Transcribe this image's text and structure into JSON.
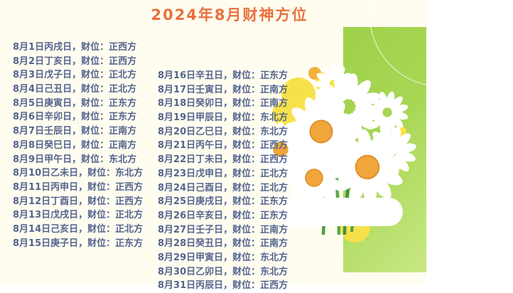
{
  "title": "2024年8月财神方位",
  "fortune": {
    "left": [
      "8月1日丙戌日，财位：正西方",
      "8月2日丁亥日，财位：正西方",
      "8月3日戊子日，财位：正北方",
      "8月4日己丑日，财位：正北方",
      "8月5日庚寅日，财位：正东方",
      "8月6日辛卯日，财位：正东方",
      "8月7日壬辰日，财位：正南方",
      "8月8日癸巳日，财位：正南方",
      "8月9日甲午日，财位：东北方",
      "8月10日乙未日，财位：东北方",
      "8月11日丙申日，财位：正西方",
      "8月12日丁酉日，财位：正西方",
      "8月13日戊戌日，财位：正北方",
      "8月14日己亥日，财位：正北方",
      "8月15日庚子日，财位：正东方"
    ],
    "right": [
      "8月16日辛丑日，财位：正东方",
      "8月17日壬寅日，财位：正南方",
      "8月18日癸卯日，财位：正南方",
      "8月19日甲辰日，财位：东北方",
      "8月20日乙巳日，财位：东北方",
      "8月21日丙午日，财位：正西方",
      "8月22日丁未日，财位：正西方",
      "8月23日戊申日，财位：正北方",
      "8月24日己酉日，财位：正北方",
      "8月25日庚戌日，财位：正东方",
      "8月26日辛亥日，财位：正东方",
      "8月27日壬子日，财位：正南方",
      "8月28日癸丑日，财位：正南方",
      "8月29日甲寅日，财位：东北方",
      "8月30日乙卯日，财位：东北方",
      "8月31日丙辰日，财位：正西方"
    ]
  },
  "colors": {
    "background": "#FFFDF0",
    "title_accent": "#E9703C",
    "body_text": "#55648E",
    "panel_green": "#9FD14A",
    "panel_green_light": "#C8E884",
    "daisy_center": "#F0A63A",
    "yellow_flower": "#F7E14B"
  }
}
